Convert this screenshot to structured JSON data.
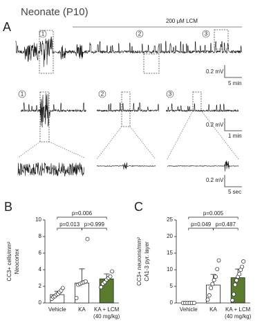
{
  "panel_a": {
    "label": "A",
    "title": "Neonate (P10)",
    "treatment": "200 μM LCM",
    "epochs": [
      "1",
      "2",
      "3"
    ],
    "scale_amplitude": [
      "0.2 mV",
      "0.2 mV",
      "0.2 mV"
    ],
    "scale_time": [
      "5 min",
      "1 min",
      "5 sec"
    ]
  },
  "chart_data": [
    {
      "type": "bar",
      "panel": "B",
      "ylabel": [
        "CC3+ cells/mm²",
        "Neocortex"
      ],
      "categories": [
        "Vehicle",
        "KA",
        "KA + LCM"
      ],
      "category_sublabels": [
        null,
        null,
        "(40 mg/kg)"
      ],
      "values": [
        1.0,
        2.4,
        2.9
      ],
      "errors": [
        0.4,
        1.7,
        0.6
      ],
      "points": [
        [
          0.5,
          0.7,
          0.8,
          1.0,
          1.1,
          1.3,
          1.5,
          1.8
        ],
        [
          0.6,
          2.2,
          2.3,
          2.4,
          2.5,
          2.6,
          7.7
        ],
        [
          1.9,
          2.3,
          2.5,
          2.8,
          3.0,
          3.2,
          3.8
        ]
      ],
      "colors": [
        "#ffffff",
        "#ffffff",
        "#5b7b2f"
      ],
      "ylim": [
        0,
        10
      ],
      "yticks": [
        0,
        2,
        4,
        6,
        8,
        10
      ],
      "annotations": [
        "p=0.013",
        "p>0.999",
        "p=0.006"
      ]
    },
    {
      "type": "bar",
      "panel": "C",
      "ylabel": [
        "CC3+ neurons/mm²",
        "CA1-3 pyr. layer"
      ],
      "categories": [
        "Vehicle",
        "KA",
        "KA + LCM"
      ],
      "category_sublabels": [
        null,
        null,
        "(40 mg/kg)"
      ],
      "values": [
        0,
        5.4,
        7.6
      ],
      "errors": [
        0,
        3.2,
        2.6
      ],
      "points": [
        [
          0,
          0,
          0,
          0,
          0,
          0
        ],
        [
          1.0,
          2.3,
          4.5,
          5.7,
          6.9,
          7.9,
          10.2,
          12.8
        ],
        [
          0.8,
          2.6,
          5.5,
          6.8,
          7.9,
          8.7,
          10.0,
          10.9,
          12.5
        ]
      ],
      "colors": [
        "#ffffff",
        "#ffffff",
        "#5b7b2f"
      ],
      "ylim": [
        0,
        25
      ],
      "yticks": [
        0,
        5,
        10,
        15,
        20,
        25
      ],
      "annotations": [
        "p=0.049",
        "p=0.487",
        "p=0.005"
      ]
    }
  ]
}
